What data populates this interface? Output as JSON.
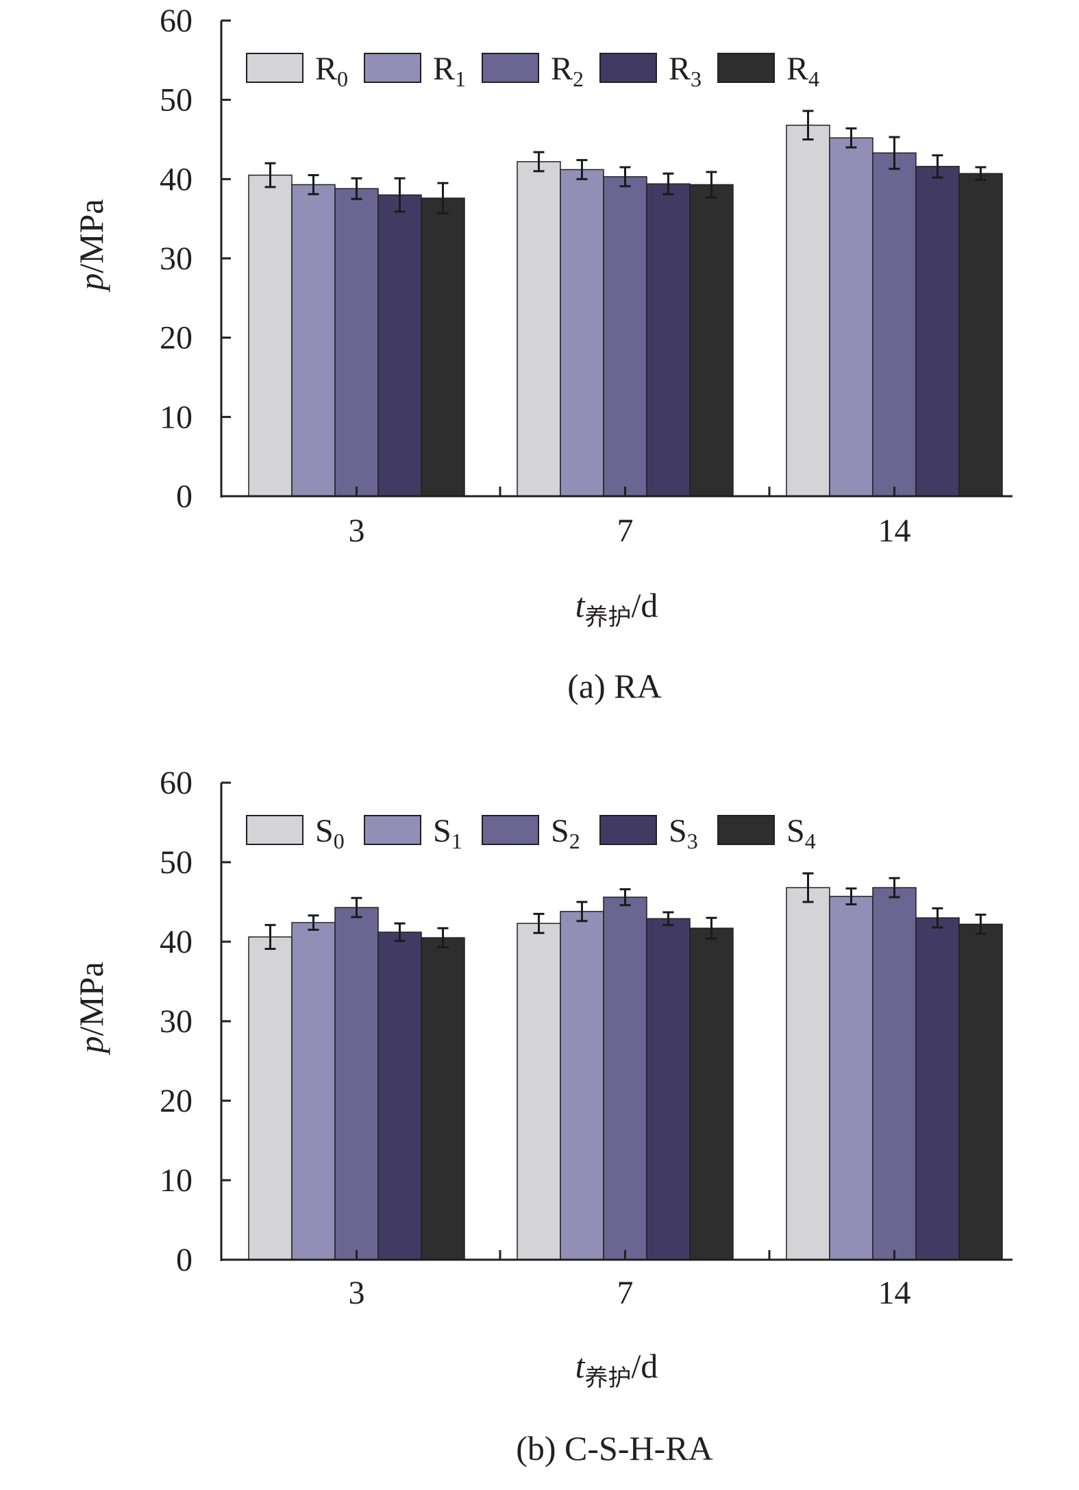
{
  "chart_data": [
    {
      "type": "bar",
      "title": "(a) RA",
      "xlabel": {
        "main": "t",
        "sub": "养护",
        "unit": "/d"
      },
      "ylabel": {
        "main": "p",
        "unit": "/MPa"
      },
      "categories": [
        "3",
        "7",
        "14"
      ],
      "yticks": [
        "0",
        "10",
        "20",
        "30",
        "40",
        "50",
        "60"
      ],
      "ylim": [
        0,
        60
      ],
      "grid": false,
      "legend_position": "top-left",
      "series": [
        {
          "name": "R",
          "sub": "0",
          "color": "#d4d4d6",
          "values": [
            40.5,
            42.2,
            46.8
          ],
          "errors": [
            1.5,
            1.2,
            1.8
          ]
        },
        {
          "name": "R",
          "sub": "1",
          "color": "#928fb7",
          "values": [
            39.3,
            41.2,
            45.2
          ],
          "errors": [
            1.2,
            1.2,
            1.2
          ]
        },
        {
          "name": "R",
          "sub": "2",
          "color": "#6a6591",
          "values": [
            38.8,
            40.3,
            43.3
          ],
          "errors": [
            1.3,
            1.2,
            2.0
          ]
        },
        {
          "name": "R",
          "sub": "3",
          "color": "#413b64",
          "values": [
            38.0,
            39.4,
            41.6
          ],
          "errors": [
            2.1,
            1.3,
            1.4
          ]
        },
        {
          "name": "R",
          "sub": "4",
          "color": "#2e2e2f",
          "values": [
            37.6,
            39.3,
            40.7
          ],
          "errors": [
            1.9,
            1.6,
            0.8
          ]
        }
      ]
    },
    {
      "type": "bar",
      "title": "(b) C-S-H-RA",
      "xlabel": {
        "main": "t",
        "sub": "养护",
        "unit": "/d"
      },
      "ylabel": {
        "main": "p",
        "unit": "/MPa"
      },
      "categories": [
        "3",
        "7",
        "14"
      ],
      "yticks": [
        "0",
        "10",
        "20",
        "30",
        "40",
        "50",
        "60"
      ],
      "ylim": [
        0,
        60
      ],
      "grid": false,
      "legend_position": "top-left",
      "series": [
        {
          "name": "S",
          "sub": "0",
          "color": "#d4d4d6",
          "values": [
            40.6,
            42.3,
            46.8
          ],
          "errors": [
            1.5,
            1.2,
            1.8
          ]
        },
        {
          "name": "S",
          "sub": "1",
          "color": "#928fb7",
          "values": [
            42.4,
            43.8,
            45.7
          ],
          "errors": [
            0.9,
            1.2,
            1.0
          ]
        },
        {
          "name": "S",
          "sub": "2",
          "color": "#6a6591",
          "values": [
            44.3,
            45.6,
            46.8
          ],
          "errors": [
            1.2,
            1.0,
            1.2
          ]
        },
        {
          "name": "S",
          "sub": "3",
          "color": "#413b64",
          "values": [
            41.2,
            42.9,
            43.0
          ],
          "errors": [
            1.1,
            0.8,
            1.2
          ]
        },
        {
          "name": "S",
          "sub": "4",
          "color": "#2e2e2f",
          "values": [
            40.5,
            41.7,
            42.2
          ],
          "errors": [
            1.2,
            1.3,
            1.2
          ]
        }
      ]
    }
  ]
}
